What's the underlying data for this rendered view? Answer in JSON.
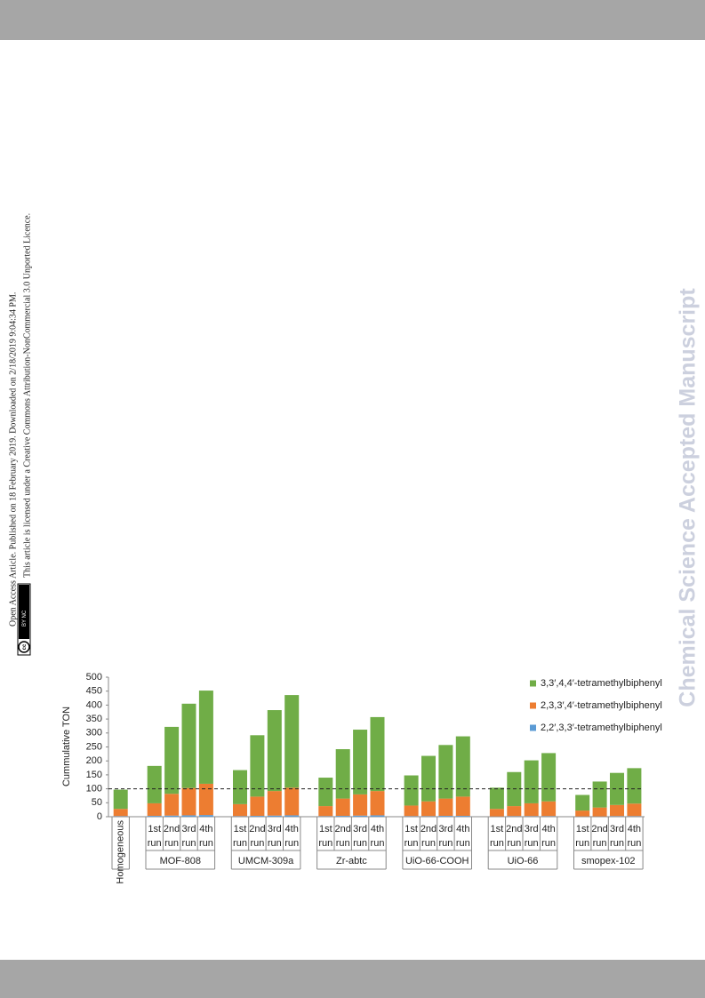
{
  "sidebar": {
    "access_note": "Open Access Article. Published on 18 February 2019. Downloaded on 2/18/2019 9:04:34 PM.",
    "licence_note": "This article is licensed under a Creative Commons Attribution-NonCommercial 3.0 Unported Licence."
  },
  "watermark": "Chemical Science Accepted Manuscript",
  "chart_data": {
    "type": "stacked_bar",
    "y_label": "Cummulative TON",
    "ylim": [
      0,
      500
    ],
    "yticks": [
      0,
      50,
      100,
      150,
      200,
      250,
      300,
      350,
      400,
      450,
      500
    ],
    "reference_line": 100,
    "legend": "upper right",
    "groups": [
      {
        "name": null,
        "categories": [
          "Homogeneous"
        ]
      },
      {
        "name": "MOF-808",
        "categories": [
          "1st run",
          "2nd run",
          "3rd run",
          "4th run"
        ]
      },
      {
        "name": "UMCM-309a",
        "categories": [
          "1st run",
          "2nd run",
          "3rd run",
          "4th run"
        ]
      },
      {
        "name": "Zr-abtc",
        "categories": [
          "1st run",
          "2nd run",
          "3rd run",
          "4th run"
        ]
      },
      {
        "name": "UiO-66-COOH",
        "categories": [
          "1st run",
          "2nd run",
          "3rd run",
          "4th run"
        ]
      },
      {
        "name": "UiO-66",
        "categories": [
          "1st run",
          "2nd run",
          "3rd run",
          "4th run"
        ]
      },
      {
        "name": "smopex-102",
        "categories": [
          "1st run",
          "2nd run",
          "3rd run",
          "4th run"
        ]
      }
    ],
    "series": [
      {
        "name": "2,2′,3,3′-tetramethylbiphenyl",
        "color": "#5b9bd5",
        "values": [
          2,
          3,
          4,
          5,
          6,
          2,
          3,
          4,
          5,
          2,
          3,
          4,
          5,
          2,
          2,
          3,
          3,
          1,
          2,
          2,
          2,
          1,
          1,
          2,
          2
        ]
      },
      {
        "name": "2,3,3′,4′-tetramethylbiphenyl",
        "color": "#ed7d31",
        "values": [
          26,
          45,
          78,
          98,
          112,
          43,
          69,
          88,
          99,
          36,
          62,
          76,
          87,
          38,
          53,
          62,
          69,
          27,
          36,
          46,
          53,
          21,
          32,
          40,
          45
        ]
      },
      {
        "name": "3,3′,4,4′-tetramethylbiphenyl",
        "color": "#70ad47",
        "values": [
          69,
          134,
          240,
          302,
          334,
          122,
          220,
          290,
          332,
          102,
          177,
          232,
          265,
          108,
          163,
          192,
          216,
          76,
          122,
          154,
          173,
          56,
          93,
          115,
          127
        ]
      }
    ]
  }
}
